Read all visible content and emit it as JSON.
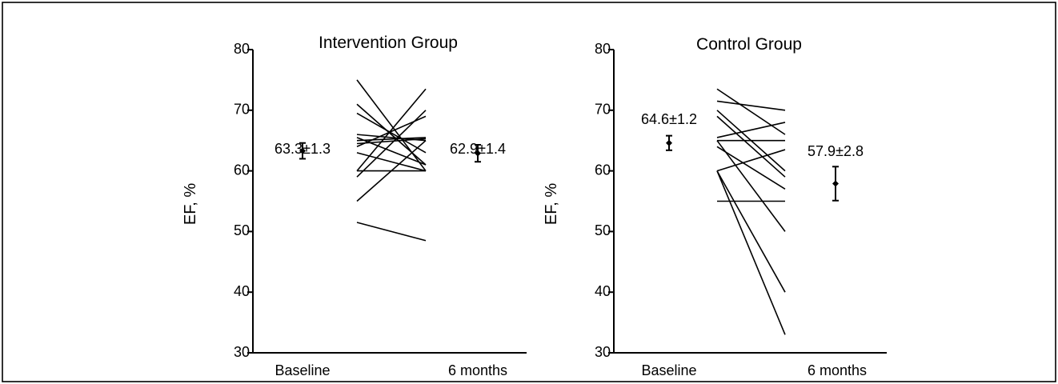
{
  "chart_data": [
    {
      "type": "line",
      "title": "Intervention Group",
      "ylabel": "EF, %",
      "xlabel": "",
      "categories": [
        "Baseline",
        "6 months"
      ],
      "ylim": [
        30,
        80
      ],
      "yticks": [
        30,
        40,
        50,
        60,
        70,
        80
      ],
      "individual_series": [
        {
          "values": [
            75,
            60
          ]
        },
        {
          "values": [
            71,
            61
          ]
        },
        {
          "values": [
            69.5,
            63
          ]
        },
        {
          "values": [
            66,
            65
          ]
        },
        {
          "values": [
            65.5,
            61
          ]
        },
        {
          "values": [
            65,
            65.5
          ]
        },
        {
          "values": [
            64.5,
            65.3
          ]
        },
        {
          "values": [
            64,
            69
          ]
        },
        {
          "values": [
            63,
            60
          ]
        },
        {
          "values": [
            60,
            73.5
          ]
        },
        {
          "values": [
            60,
            60
          ]
        },
        {
          "values": [
            59,
            70
          ]
        },
        {
          "values": [
            55,
            65
          ]
        },
        {
          "values": [
            51.5,
            48.5
          ]
        }
      ],
      "means": [
        {
          "label": "63.3±1.3",
          "mean": 63.3,
          "error": 1.3
        },
        {
          "label": "62.9±1.4",
          "mean": 62.9,
          "error": 1.4
        }
      ]
    },
    {
      "type": "line",
      "title": "Control Group",
      "ylabel": "EF, %",
      "xlabel": "",
      "categories": [
        "Baseline",
        "6 months"
      ],
      "ylim": [
        30,
        80
      ],
      "yticks": [
        30,
        40,
        50,
        60,
        70,
        80
      ],
      "individual_series": [
        {
          "values": [
            73.5,
            66
          ]
        },
        {
          "values": [
            71.5,
            70
          ]
        },
        {
          "values": [
            70,
            60
          ]
        },
        {
          "values": [
            69,
            59
          ]
        },
        {
          "values": [
            65.5,
            68
          ]
        },
        {
          "values": [
            65,
            65
          ]
        },
        {
          "values": [
            65,
            50
          ]
        },
        {
          "values": [
            64,
            57
          ]
        },
        {
          "values": [
            60,
            63.5
          ]
        },
        {
          "values": [
            60,
            40
          ]
        },
        {
          "values": [
            60,
            33
          ]
        },
        {
          "values": [
            55,
            55
          ]
        }
      ],
      "means": [
        {
          "label": "64.6±1.2",
          "mean": 64.6,
          "error": 1.2
        },
        {
          "label": "57.9±2.8",
          "mean": 57.9,
          "error": 2.8
        }
      ]
    }
  ]
}
